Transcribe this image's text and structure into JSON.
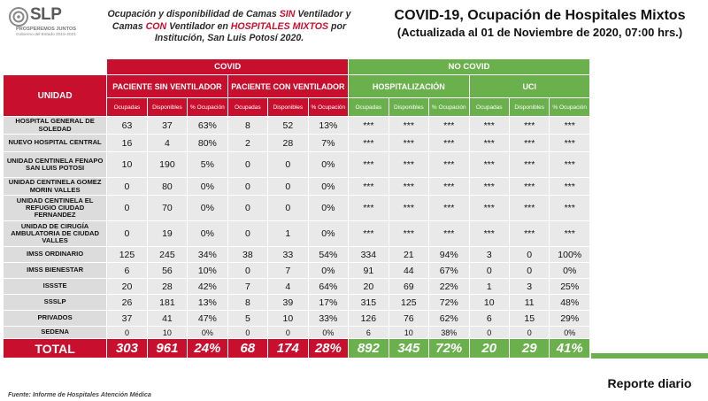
{
  "logo": {
    "mark": "SLP",
    "tagline": "PROSPEREMOS JUNTOS",
    "gov": "Gobierno del Estado 2015-2021"
  },
  "subtitle": {
    "p1": "Ocupación y disponibilidad de Camas ",
    "sin": "SIN",
    "p2": " Ventilador y Camas ",
    "con": "CON",
    "p3": " Ventilador en ",
    "hosp": "HOSPITALES MIXTOS",
    "p4": " por Institución, San Luis Potosí 2020."
  },
  "title": {
    "line1": "COVID-19, Ocupación de Hospitales Mixtos",
    "line2": "(Actualizada al 01 de Noviembre de 2020, 07:00 hrs.)"
  },
  "table": {
    "unidad_header": "UNIDAD",
    "group_covid": "COVID",
    "group_nocovid": "NO COVID",
    "sub_sin": "PACIENTE SIN VENTILADOR",
    "sub_con": "PACIENTE CON VENTILADOR",
    "sub_hosp": "HOSPITALIZACIÓN",
    "sub_uci": "UCI",
    "col_ocupadas": "Ocupadas",
    "col_disponibles": "Disponibles",
    "col_pct": "% Ocupación",
    "rows": [
      {
        "unidad": "HOSPITAL GENERAL DE SOLEDAD",
        "v": [
          "63",
          "37",
          "63%",
          "8",
          "52",
          "13%",
          "***",
          "***",
          "***",
          "***",
          "***",
          "***"
        ]
      },
      {
        "unidad": "NUEVO HOSPITAL CENTRAL",
        "v": [
          "16",
          "4",
          "80%",
          "2",
          "28",
          "7%",
          "***",
          "***",
          "***",
          "***",
          "***",
          "***"
        ]
      },
      {
        "unidad": "UNIDAD CENTINELA FENAPO SAN LUIS POTOSI",
        "v": [
          "10",
          "190",
          "5%",
          "0",
          "0",
          "0%",
          "***",
          "***",
          "***",
          "***",
          "***",
          "***"
        ]
      },
      {
        "unidad": "UNIDAD CENTINELA GOMEZ MORIN VALLES",
        "v": [
          "0",
          "80",
          "0%",
          "0",
          "0",
          "0%",
          "***",
          "***",
          "***",
          "***",
          "***",
          "***"
        ]
      },
      {
        "unidad": "UNIDAD CENTINELA EL REFUGIO CIUDAD FERNANDEZ",
        "v": [
          "0",
          "70",
          "0%",
          "0",
          "0",
          "0%",
          "***",
          "***",
          "***",
          "***",
          "***",
          "***"
        ]
      },
      {
        "unidad": "UNIDAD DE CIRUGÍA AMBULATORIA DE CIUDAD VALLES",
        "v": [
          "0",
          "19",
          "0%",
          "0",
          "1",
          "0%",
          "***",
          "***",
          "***",
          "***",
          "***",
          "***"
        ]
      },
      {
        "unidad": "IMSS ORDINARIO",
        "v": [
          "125",
          "245",
          "34%",
          "38",
          "33",
          "54%",
          "334",
          "21",
          "94%",
          "3",
          "0",
          "100%"
        ]
      },
      {
        "unidad": "IMSS BIENESTAR",
        "v": [
          "6",
          "56",
          "10%",
          "0",
          "7",
          "0%",
          "91",
          "44",
          "67%",
          "0",
          "0",
          "0%"
        ]
      },
      {
        "unidad": "ISSSTE",
        "v": [
          "20",
          "28",
          "42%",
          "7",
          "4",
          "64%",
          "20",
          "69",
          "22%",
          "1",
          "3",
          "25%"
        ]
      },
      {
        "unidad": "SSSLP",
        "v": [
          "26",
          "181",
          "13%",
          "8",
          "39",
          "17%",
          "315",
          "125",
          "72%",
          "10",
          "11",
          "48%"
        ]
      },
      {
        "unidad": "PRIVADOS",
        "v": [
          "37",
          "41",
          "47%",
          "5",
          "10",
          "33%",
          "126",
          "76",
          "62%",
          "6",
          "15",
          "29%"
        ]
      },
      {
        "unidad": "SEDENA",
        "v": [
          "0",
          "10",
          "0%",
          "0",
          "0",
          "0%",
          "6",
          "10",
          "38%",
          "0",
          "0",
          "0%"
        ]
      }
    ],
    "total": {
      "label": "TOTAL",
      "v": [
        "303",
        "961",
        "24%",
        "68",
        "174",
        "28%",
        "892",
        "345",
        "72%",
        "20",
        "29",
        "41%"
      ]
    }
  },
  "reporte": "Reporte diario",
  "fuente": "Fuente: Informe de Hospitales Atención Médica",
  "colors": {
    "covid_red": "#c8102e",
    "nocovid_green": "#6ab04c",
    "cell_gray": "#e9e9e9"
  }
}
